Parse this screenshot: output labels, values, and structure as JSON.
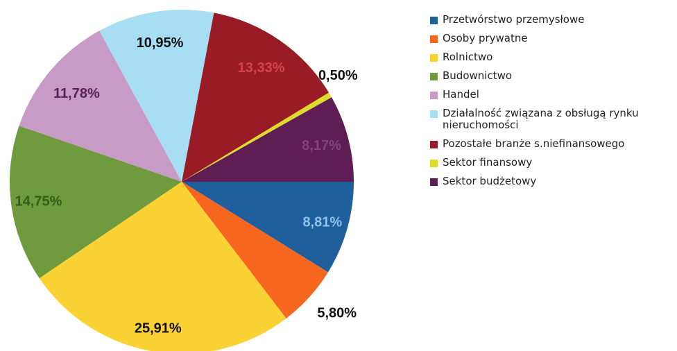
{
  "chart_data": {
    "type": "pie",
    "title": "",
    "legend_position": "right",
    "slices": [
      {
        "name": "Przetwórstwo przemysłowe",
        "value": 8.81,
        "label": "8,81%",
        "color": "#1f5f9c"
      },
      {
        "name": "Osoby prywatne",
        "value": 5.8,
        "label": "5,80%",
        "color": "#f7661f"
      },
      {
        "name": "Rolnictwo",
        "value": 25.91,
        "label": "25,91%",
        "color": "#fbd234"
      },
      {
        "name": "Budownictwo",
        "value": 14.75,
        "label": "14,75%",
        "color": "#6f9a3e"
      },
      {
        "name": "Handel",
        "value": 11.78,
        "label": "11,78%",
        "color": "#c89ac6"
      },
      {
        "name": "Działalność związana z obsługą rynku nieruchomości",
        "value": 10.95,
        "label": "10,95%",
        "color": "#a8def4"
      },
      {
        "name": "Pozostałe branże s.niefinansowego",
        "value": 13.33,
        "label": "13,33%",
        "color": "#991b26"
      },
      {
        "name": "Sektor finansowy",
        "value": 0.5,
        "label": "0,50%",
        "color": "#dedb2a"
      },
      {
        "name": "Sektor budżetowy",
        "value": 8.17,
        "label": "8,17%",
        "color": "#5e1d53"
      }
    ]
  },
  "legend": {
    "items": [
      {
        "label": "Przetwórstwo przemysłowe",
        "color": "#1f5f9c"
      },
      {
        "label": "Osoby prywatne",
        "color": "#f7661f"
      },
      {
        "label": "Rolnictwo",
        "color": "#fbd234"
      },
      {
        "label": "Budownictwo",
        "color": "#6f9a3e"
      },
      {
        "label": "Handel",
        "color": "#c89ac6"
      },
      {
        "label": "Działalność związana z obsługą rynku nieruchomości",
        "color": "#a8def4"
      },
      {
        "label": "Pozostałe branże s.niefinansowego",
        "color": "#991b26"
      },
      {
        "label": "Sektor finansowy",
        "color": "#dedb2a"
      },
      {
        "label": "Sektor budżetowy",
        "color": "#5e1d53"
      }
    ]
  }
}
